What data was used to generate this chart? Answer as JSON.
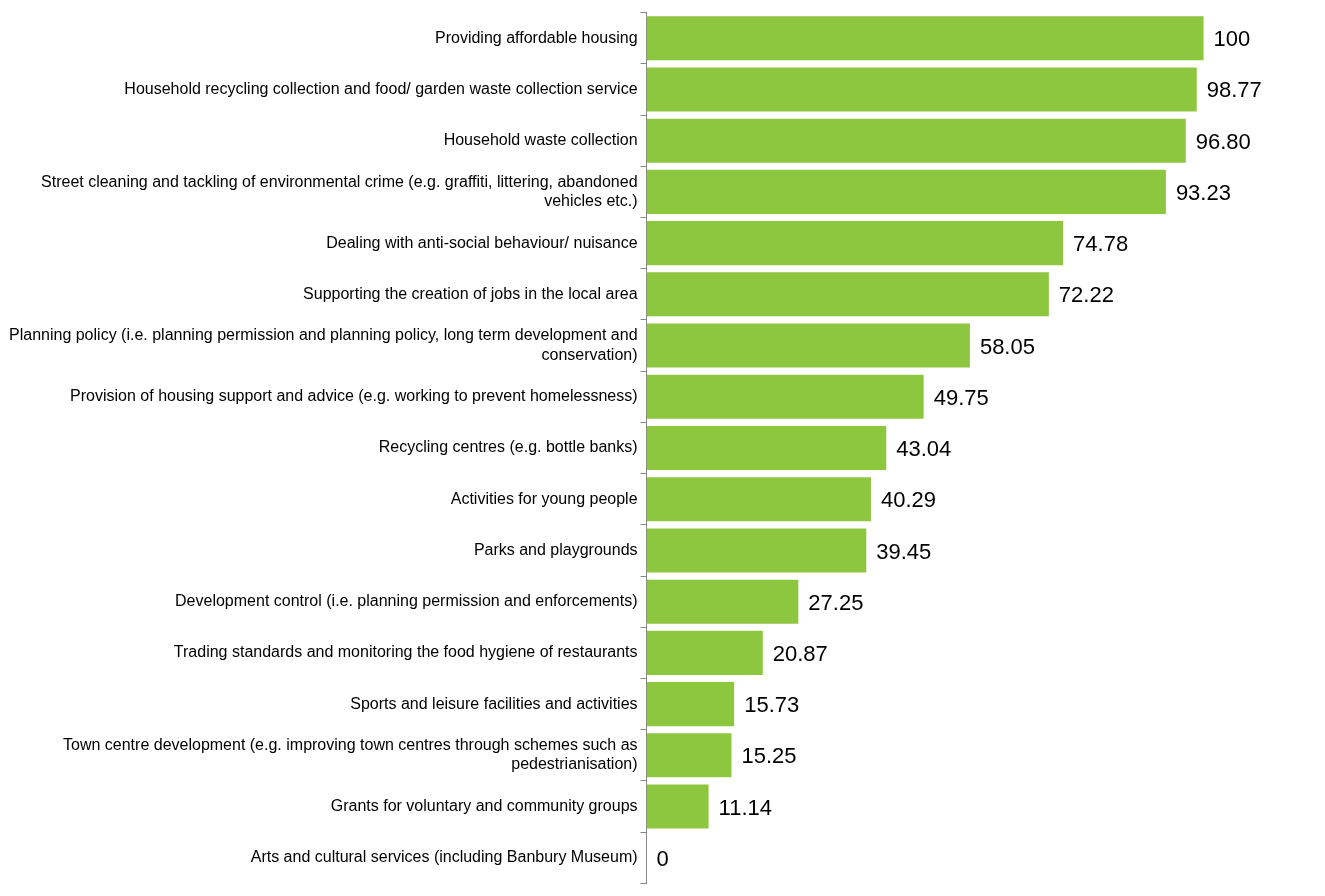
{
  "chart_data": {
    "type": "bar",
    "orientation": "horizontal",
    "color": "#8dc63f",
    "legend": false,
    "tick_labels": "y",
    "categories": [
      "Providing affordable housing",
      "Household recycling collection and food/ garden waste collection service",
      "Household waste collection",
      "Street cleaning and tackling of environmental crime (e.g. graffiti, littering, abandoned vehicles etc.)",
      "Dealing with anti-social behaviour/ nuisance",
      "Supporting the creation of jobs in the local area",
      "Planning policy (i.e. planning permission and planning policy, long term development and conservation)",
      "Provision of housing support and advice (e.g. working to prevent homelessness)",
      "Recycling centres (e.g. bottle banks)",
      "Activities for young people",
      "Parks and playgrounds",
      "Development control (i.e. planning permission and enforcements)",
      "Trading standards and monitoring the food hygiene of restaurants",
      "Sports and leisure facilities and activities",
      "Town centre development (e.g. improving town centres through schemes such as pedestrianisation)",
      "Grants for voluntary and community groups",
      "Arts and cultural services (including Banbury Museum)"
    ],
    "values": [
      100,
      98.77,
      96.8,
      93.23,
      74.78,
      72.22,
      58.05,
      49.75,
      43.04,
      40.29,
      39.45,
      27.25,
      20.87,
      15.73,
      15.25,
      11.14,
      0
    ],
    "value_labels": [
      "100",
      "98.77",
      "96.80",
      "93.23",
      "74.78",
      "72.22",
      "58.05",
      "49.75",
      "43.04",
      "40.29",
      "39.45",
      "27.25",
      "20.87",
      "15.73",
      "15.25",
      "11.14",
      "0"
    ]
  }
}
